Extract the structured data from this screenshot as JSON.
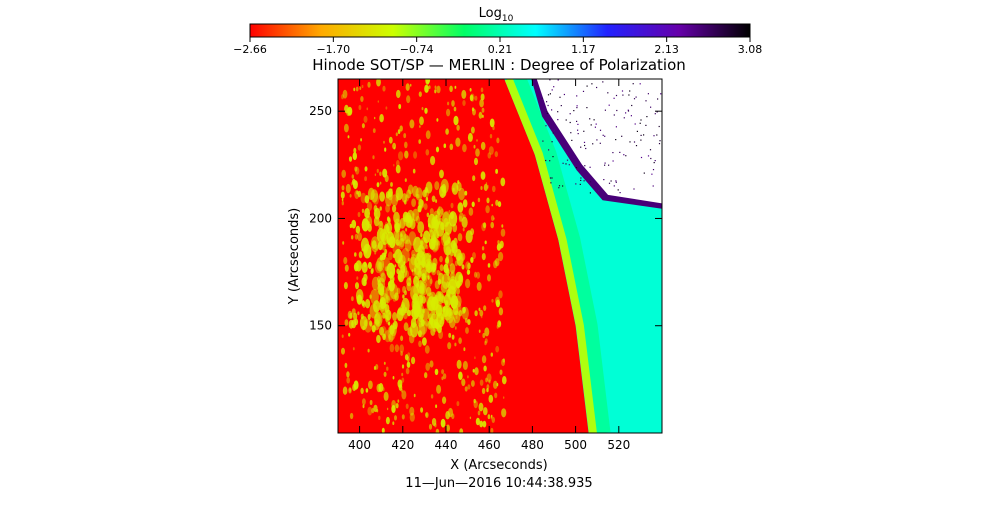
{
  "chart_data": {
    "type": "heatmap",
    "title": "Hinode SOT/SP — MERLIN : Degree of Polarization",
    "xlabel": "X (Arcseconds)",
    "ylabel": "Y (Arcseconds)",
    "timestamp": "11—Jun—2016 10:44:38.935",
    "colorbar": {
      "label_base": "Log",
      "label_sub": "10",
      "ticks": [
        "−2.66",
        "−1.70",
        "−0.74",
        "0.21",
        "1.17",
        "2.13",
        "3.08"
      ],
      "range": [
        -2.66,
        3.08
      ],
      "colormap": [
        "#ff0000",
        "#ffaa00",
        "#ccff00",
        "#00ff66",
        "#00ffff",
        "#2222ff",
        "#6600aa",
        "#000000"
      ]
    },
    "xlim": [
      390,
      540
    ],
    "ylim": [
      100,
      265
    ],
    "xticks": [
      400,
      420,
      440,
      460,
      480,
      500,
      520
    ],
    "yticks": [
      150,
      200,
      250
    ],
    "regions": {
      "on_disk_value": -2.66,
      "faculae_value": -1.2,
      "limb_band_value": -0.9,
      "off_limb_value": 0.4,
      "off_limb_edge_value": 2.5,
      "missing_data_color": "#ffffff"
    },
    "limb_arc": [
      [
        467,
        265
      ],
      [
        481,
        230
      ],
      [
        492,
        190
      ],
      [
        500,
        150
      ],
      [
        506,
        100
      ]
    ],
    "missing_patch": [
      [
        482,
        265
      ],
      [
        540,
        265
      ],
      [
        540,
        207
      ],
      [
        515,
        211
      ],
      [
        503,
        225
      ],
      [
        487,
        250
      ]
    ],
    "grid": false
  }
}
